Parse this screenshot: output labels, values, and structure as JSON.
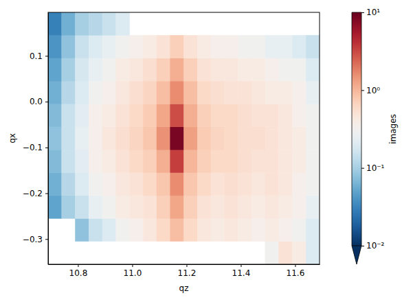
{
  "chart_data": {
    "type": "heatmap",
    "xlabel": "qz",
    "ylabel": "qx",
    "x": [
      10.69,
      10.74,
      10.79,
      10.84,
      10.89,
      10.94,
      10.99,
      11.04,
      11.09,
      11.14,
      11.19,
      11.24,
      11.29,
      11.34,
      11.39,
      11.44,
      11.49,
      11.54,
      11.59,
      11.64,
      11.69
    ],
    "y": [
      -0.355,
      -0.305,
      -0.255,
      -0.205,
      -0.155,
      -0.105,
      -0.055,
      -0.005,
      0.045,
      0.095,
      0.145,
      0.195
    ],
    "z": [
      [
        null,
        null,
        null,
        null,
        null,
        null,
        null,
        null,
        null,
        null,
        null,
        null,
        null,
        null,
        null,
        null,
        0.3,
        0.5,
        0.4,
        0.2
      ],
      [
        null,
        null,
        0.08,
        0.15,
        0.2,
        0.3,
        0.35,
        0.45,
        0.6,
        0.9,
        0.6,
        0.45,
        0.4,
        0.45,
        0.4,
        0.35,
        0.4,
        0.35,
        0.3,
        0.2
      ],
      [
        0.05,
        0.1,
        0.15,
        0.25,
        0.3,
        0.4,
        0.45,
        0.5,
        0.7,
        1.2,
        0.7,
        0.5,
        0.45,
        0.5,
        0.45,
        0.4,
        0.45,
        0.4,
        0.35,
        0.25
      ],
      [
        0.06,
        0.12,
        0.2,
        0.3,
        0.35,
        0.45,
        0.5,
        0.6,
        0.8,
        1.6,
        0.8,
        0.6,
        0.5,
        0.55,
        0.5,
        0.45,
        0.5,
        0.45,
        0.35,
        0.3
      ],
      [
        0.07,
        0.15,
        0.22,
        0.35,
        0.4,
        0.5,
        0.6,
        0.7,
        1.1,
        3.5,
        1.0,
        0.7,
        0.6,
        0.6,
        0.55,
        0.5,
        0.5,
        0.45,
        0.4,
        0.3
      ],
      [
        0.08,
        0.15,
        0.25,
        0.35,
        0.45,
        0.55,
        0.65,
        0.8,
        1.5,
        8.5,
        1.3,
        0.75,
        0.65,
        0.6,
        0.55,
        0.55,
        0.5,
        0.45,
        0.4,
        0.3
      ],
      [
        0.07,
        0.15,
        0.22,
        0.35,
        0.4,
        0.5,
        0.6,
        0.75,
        1.2,
        3.0,
        1.1,
        0.7,
        0.6,
        0.6,
        0.55,
        0.5,
        0.5,
        0.45,
        0.35,
        0.3
      ],
      [
        0.06,
        0.12,
        0.2,
        0.3,
        0.35,
        0.45,
        0.55,
        0.65,
        0.9,
        1.6,
        0.9,
        0.6,
        0.55,
        0.5,
        0.5,
        0.45,
        0.4,
        0.4,
        0.35,
        0.25
      ],
      [
        0.05,
        0.1,
        0.18,
        0.25,
        0.3,
        0.4,
        0.45,
        0.55,
        0.7,
        1.1,
        0.7,
        0.5,
        0.45,
        0.45,
        0.4,
        0.4,
        0.35,
        0.3,
        0.3,
        0.2
      ],
      [
        0.04,
        0.08,
        0.15,
        0.2,
        0.25,
        0.3,
        0.35,
        0.4,
        0.5,
        0.7,
        0.5,
        0.4,
        0.35,
        0.35,
        0.3,
        0.3,
        0.25,
        0.25,
        0.2,
        0.15
      ],
      [
        0.03,
        0.06,
        0.1,
        0.12,
        0.15,
        0.2,
        null,
        null,
        null,
        null,
        null,
        null,
        null,
        null,
        null,
        null,
        null,
        null,
        null,
        null
      ]
    ],
    "xlim": [
      10.69,
      11.69
    ],
    "ylim": [
      -0.355,
      0.195
    ],
    "xticks": [
      10.8,
      {
        "value": 11.0,
        "label": "11.0"
      },
      11.2,
      11.4,
      11.6
    ],
    "yticks": [
      {
        "value": -0.3,
        "label": "−0.3"
      },
      {
        "value": -0.2,
        "label": "−0.2"
      },
      {
        "value": -0.1,
        "label": "−0.1"
      },
      {
        "value": 0.0,
        "label": "0.0"
      },
      0.1
    ],
    "colorbar_label": "images",
    "colorbar_range": [
      0.01,
      10
    ],
    "colorbar_ticks": [
      {
        "value": 0.01,
        "label": "10⁻²"
      },
      {
        "value": 0.1,
        "label": "10⁻¹"
      },
      {
        "value": 1,
        "label": "10⁰"
      },
      {
        "value": 10,
        "label": "10¹"
      }
    ]
  }
}
